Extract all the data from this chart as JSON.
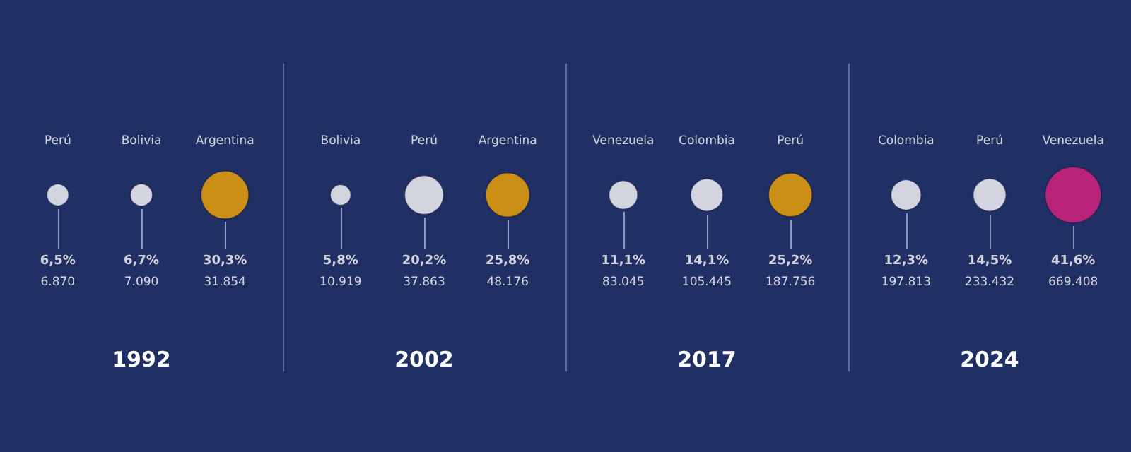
{
  "chart_data": [
    {
      "type": "other",
      "title": "1992",
      "categories": [
        "Perú",
        "Bolivia",
        "Argentina"
      ],
      "colors": [
        "#ffffff",
        "#ffffff",
        "#f5a800"
      ],
      "series": [
        {
          "values": [
            6.5,
            6.7,
            30.3
          ],
          "value_labels": [
            "6,5%",
            "6,7%",
            "30,3%"
          ]
        },
        {
          "values": [
            6870,
            7090,
            31854
          ],
          "value_labels": [
            "6.870",
            "7.090",
            "31.854"
          ]
        }
      ]
    },
    {
      "type": "other",
      "title": "2002",
      "categories": [
        "Bolivia",
        "Perú",
        "Argentina"
      ],
      "colors": [
        "#ffffff",
        "#ffffff",
        "#f5a800"
      ],
      "series": [
        {
          "values": [
            5.8,
            20.2,
            25.8
          ],
          "value_labels": [
            "5,8%",
            "20,2%",
            "25,8%"
          ]
        },
        {
          "values": [
            10919,
            37863,
            48176
          ],
          "value_labels": [
            "10.919",
            "37.863",
            "48.176"
          ]
        }
      ]
    },
    {
      "type": "other",
      "title": "2017",
      "categories": [
        "Venezuela",
        "Colombia",
        "Perú"
      ],
      "colors": [
        "#ffffff",
        "#ffffff",
        "#f5a800"
      ],
      "series": [
        {
          "values": [
            11.1,
            14.1,
            25.2
          ],
          "value_labels": [
            "11,1%",
            "14,1%",
            "25,2%"
          ]
        },
        {
          "values": [
            83045,
            105445,
            187756
          ],
          "value_labels": [
            "83.045",
            "105.445",
            "187.756"
          ]
        }
      ]
    },
    {
      "type": "other",
      "title": "2024",
      "categories": [
        "Colombia",
        "Perú",
        "Venezuela"
      ],
      "colors": [
        "#ffffff",
        "#ffffff",
        "#e0217f"
      ],
      "series": [
        {
          "values": [
            12.3,
            14.5,
            41.6
          ],
          "value_labels": [
            "12,3%",
            "14,5%",
            "41,6%"
          ]
        },
        {
          "values": [
            197813,
            233432,
            669408
          ],
          "value_labels": [
            "197.813",
            "233.432",
            "669.408"
          ]
        }
      ]
    }
  ]
}
